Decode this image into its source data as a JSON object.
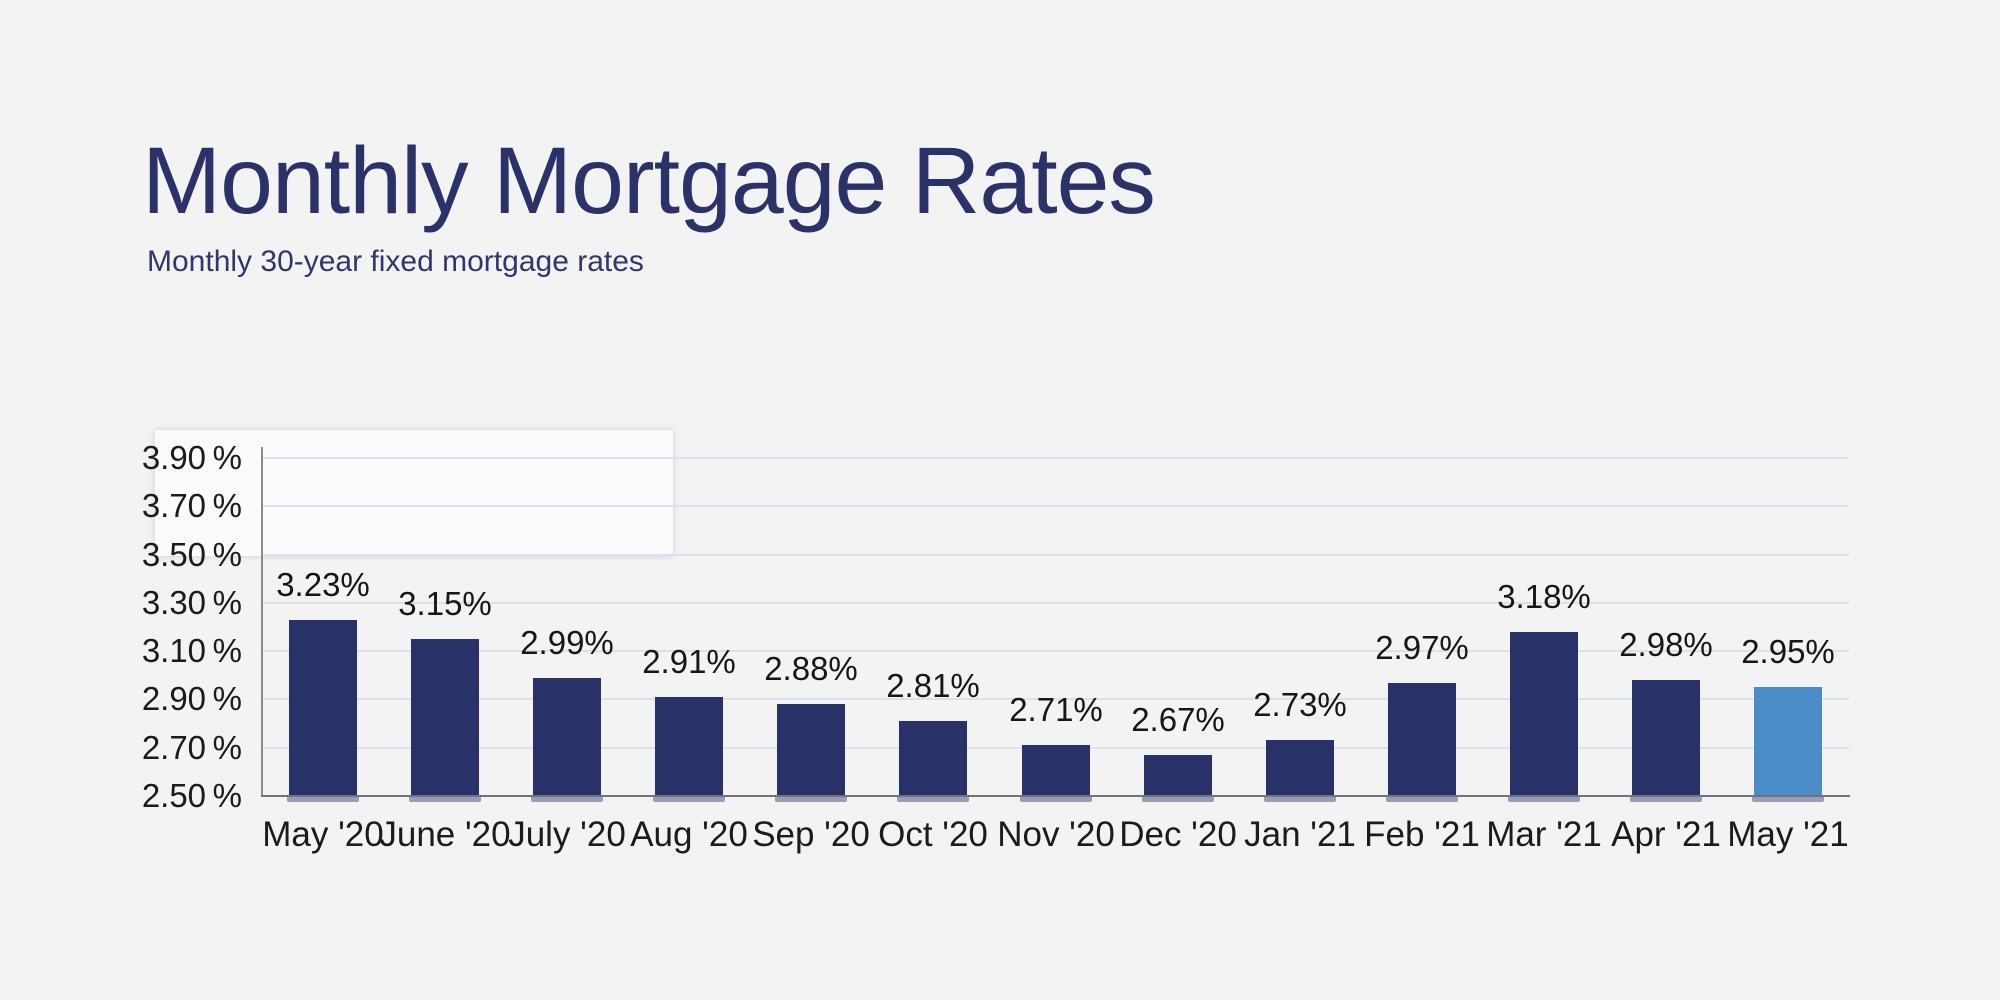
{
  "page": {
    "background_color": "#f3f3f4"
  },
  "header": {
    "title": "Monthly Mortgage Rates",
    "subtitle": "Monthly 30-year fixed mortgage rates",
    "title_color": "#2b3269",
    "subtitle_color": "#30376e"
  },
  "chart_data": {
    "type": "bar",
    "title": "Monthly Mortgage Rates",
    "subtitle": "Monthly 30-year fixed mortgage rates",
    "categories": [
      "May '20",
      "June '20",
      "July '20",
      "Aug '20",
      "Sep '20",
      "Oct '20",
      "Nov '20",
      "Dec '20",
      "Jan '21",
      "Feb '21",
      "Mar '21",
      "Apr '21",
      "May '21"
    ],
    "values": [
      3.23,
      3.15,
      2.99,
      2.91,
      2.88,
      2.81,
      2.71,
      2.67,
      2.73,
      2.97,
      3.18,
      2.98,
      2.95
    ],
    "value_labels": [
      "3.23%",
      "3.15%",
      "2.99%",
      "2.91%",
      "2.88%",
      "2.81%",
      "2.71%",
      "2.67%",
      "2.73%",
      "2.97%",
      "3.18%",
      "2.98%",
      "2.95%"
    ],
    "unit": "%",
    "xlabel": "",
    "ylabel": "",
    "ylim": [
      2.5,
      3.9
    ],
    "yticks": [
      {
        "value": 3.9,
        "label": "3.90 %"
      },
      {
        "value": 3.7,
        "label": "3.70 %"
      },
      {
        "value": 3.5,
        "label": "3.50 %"
      },
      {
        "value": 3.3,
        "label": "3.30 %"
      },
      {
        "value": 3.1,
        "label": "3.10 %"
      },
      {
        "value": 2.9,
        "label": "2.90 %"
      },
      {
        "value": 2.7,
        "label": "2.70 %"
      },
      {
        "value": 2.5,
        "label": "2.50 %"
      }
    ],
    "grid": true,
    "legend": "none",
    "bar_color": "#293268",
    "highlight_bar_color": "#4a8cc8",
    "highlight_index": 12,
    "gridline_color": "#d9e1f1",
    "axis_line_color": "#737377",
    "y_axis_line_color": "#8a8a8e",
    "tick_label_color": "#1b1b1c",
    "value_label_color": "#161617",
    "bar_shadow_color": "rgba(92,98,140,0.6)"
  }
}
